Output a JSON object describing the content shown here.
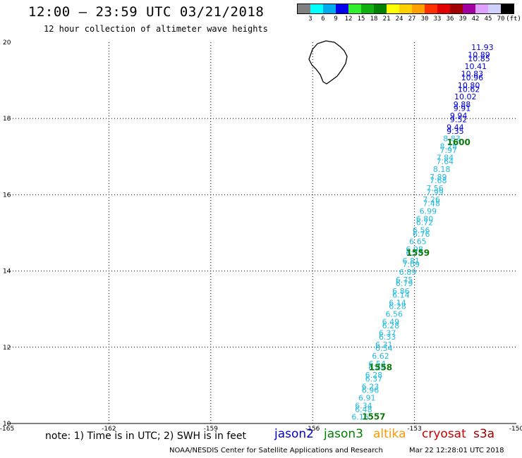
{
  "header": {
    "title": "12:00 – 23:59 UTC 03/21/2018",
    "subtitle": "12 hour collection of altimeter wave heights"
  },
  "colorbar": {
    "colors": [
      "#808080",
      "#00ffff",
      "#00aaee",
      "#0000ee",
      "#30ee30",
      "#10b010",
      "#008000",
      "#ffff00",
      "#ffd000",
      "#ffa000",
      "#ff3000",
      "#e00000",
      "#a00000",
      "#a000a0",
      "#e0a0ff",
      "#d0d0ff",
      "#000000"
    ],
    "labels": [
      "3",
      "6",
      "9",
      "12",
      "15",
      "18",
      "21",
      "24",
      "27",
      "30",
      "33",
      "36",
      "39",
      "42",
      "45",
      "70",
      "(ft)"
    ]
  },
  "map": {
    "lon_range": [
      -165,
      -150
    ],
    "lat_range": [
      10,
      20
    ],
    "x_tick_labels": [
      "-165",
      "-162",
      "-159",
      "-156",
      "-153",
      "-150"
    ],
    "y_tick_labels": [
      "10",
      "12",
      "14",
      "16",
      "18",
      "20"
    ],
    "grid": "dotted"
  },
  "chart_data": {
    "type": "scatter",
    "swh_points": [
      {
        "lon": -151.0,
        "lat": 19.8,
        "v": "11.93",
        "c": "blue"
      },
      {
        "lon": -151.1,
        "lat": 19.6,
        "v": "10.89",
        "c": "blue"
      },
      {
        "lon": -151.1,
        "lat": 19.5,
        "v": "10.85",
        "c": "blue"
      },
      {
        "lon": -151.2,
        "lat": 19.3,
        "v": "10.41",
        "c": "blue"
      },
      {
        "lon": -151.3,
        "lat": 19.1,
        "v": "10.83",
        "c": "blue"
      },
      {
        "lon": -151.3,
        "lat": 19.0,
        "v": "10.96",
        "c": "blue"
      },
      {
        "lon": -151.4,
        "lat": 18.8,
        "v": "10.80",
        "c": "blue"
      },
      {
        "lon": -151.4,
        "lat": 18.7,
        "v": "10.62",
        "c": "blue"
      },
      {
        "lon": -151.5,
        "lat": 18.5,
        "v": "10.02",
        "c": "blue"
      },
      {
        "lon": -151.6,
        "lat": 18.3,
        "v": "9.88",
        "c": "blue"
      },
      {
        "lon": -151.6,
        "lat": 18.2,
        "v": "9.91",
        "c": "blue"
      },
      {
        "lon": -151.7,
        "lat": 18.0,
        "v": "9.94",
        "c": "blue"
      },
      {
        "lon": -151.7,
        "lat": 17.9,
        "v": "9.52",
        "c": "blue"
      },
      {
        "lon": -151.8,
        "lat": 17.7,
        "v": "9.44",
        "c": "blue"
      },
      {
        "lon": -151.8,
        "lat": 17.6,
        "v": "9.35",
        "c": "blue"
      },
      {
        "lon": -151.9,
        "lat": 17.4,
        "v": "8.83",
        "c": "cyan"
      },
      {
        "lon": -152.0,
        "lat": 17.2,
        "v": "8.28",
        "c": "cyan"
      },
      {
        "lon": -152.0,
        "lat": 17.1,
        "v": "7.97",
        "c": "cyan"
      },
      {
        "lon": -152.1,
        "lat": 16.9,
        "v": "7.84",
        "c": "cyan"
      },
      {
        "lon": -152.1,
        "lat": 16.8,
        "v": "7.64",
        "c": "cyan"
      },
      {
        "lon": -152.2,
        "lat": 16.6,
        "v": "8.18",
        "c": "cyan"
      },
      {
        "lon": -152.3,
        "lat": 16.4,
        "v": "7.89",
        "c": "cyan"
      },
      {
        "lon": -152.3,
        "lat": 16.3,
        "v": "7.68",
        "c": "cyan"
      },
      {
        "lon": -152.4,
        "lat": 16.1,
        "v": "7.56",
        "c": "cyan"
      },
      {
        "lon": -152.4,
        "lat": 16.0,
        "v": "7.99",
        "c": "cyan"
      },
      {
        "lon": -152.5,
        "lat": 15.8,
        "v": "7.26",
        "c": "cyan"
      },
      {
        "lon": -152.5,
        "lat": 15.7,
        "v": "7.48",
        "c": "cyan"
      },
      {
        "lon": -152.6,
        "lat": 15.5,
        "v": "6.99",
        "c": "cyan"
      },
      {
        "lon": -152.7,
        "lat": 15.3,
        "v": "6.80",
        "c": "cyan"
      },
      {
        "lon": -152.7,
        "lat": 15.2,
        "v": "6.72",
        "c": "cyan"
      },
      {
        "lon": -152.8,
        "lat": 15.0,
        "v": "6.56",
        "c": "cyan"
      },
      {
        "lon": -152.8,
        "lat": 14.9,
        "v": "6.76",
        "c": "cyan"
      },
      {
        "lon": -152.9,
        "lat": 14.7,
        "v": "6.65",
        "c": "cyan"
      },
      {
        "lon": -153.0,
        "lat": 14.5,
        "v": "6.98",
        "c": "cyan"
      },
      {
        "lon": -153.0,
        "lat": 14.4,
        "v": "6.78",
        "c": "cyan"
      },
      {
        "lon": -153.1,
        "lat": 14.2,
        "v": "6.81",
        "c": "cyan"
      },
      {
        "lon": -153.1,
        "lat": 14.1,
        "v": "7.09",
        "c": "cyan"
      },
      {
        "lon": -153.2,
        "lat": 13.9,
        "v": "6.89",
        "c": "cyan"
      },
      {
        "lon": -153.3,
        "lat": 13.7,
        "v": "6.75",
        "c": "cyan"
      },
      {
        "lon": -153.3,
        "lat": 13.6,
        "v": "6.79",
        "c": "cyan"
      },
      {
        "lon": -153.4,
        "lat": 13.4,
        "v": "6.86",
        "c": "cyan"
      },
      {
        "lon": -153.4,
        "lat": 13.3,
        "v": "6.14",
        "c": "cyan"
      },
      {
        "lon": -153.5,
        "lat": 13.1,
        "v": "6.14",
        "c": "cyan"
      },
      {
        "lon": -153.5,
        "lat": 13.0,
        "v": "6.28",
        "c": "cyan"
      },
      {
        "lon": -153.6,
        "lat": 12.8,
        "v": "6.56",
        "c": "cyan"
      },
      {
        "lon": -153.7,
        "lat": 12.6,
        "v": "6.49",
        "c": "cyan"
      },
      {
        "lon": -153.7,
        "lat": 12.5,
        "v": "6.28",
        "c": "cyan"
      },
      {
        "lon": -153.8,
        "lat": 12.3,
        "v": "6.37",
        "c": "cyan"
      },
      {
        "lon": -153.8,
        "lat": 12.2,
        "v": "6.33",
        "c": "cyan"
      },
      {
        "lon": -153.9,
        "lat": 12.0,
        "v": "6.31",
        "c": "cyan"
      },
      {
        "lon": -153.9,
        "lat": 11.9,
        "v": "6.54",
        "c": "cyan"
      },
      {
        "lon": -154.0,
        "lat": 11.7,
        "v": "6.62",
        "c": "cyan"
      },
      {
        "lon": -154.1,
        "lat": 11.5,
        "v": "6.54",
        "c": "cyan"
      },
      {
        "lon": -154.1,
        "lat": 11.4,
        "v": "6.49",
        "c": "cyan"
      },
      {
        "lon": -154.2,
        "lat": 11.2,
        "v": "6.28",
        "c": "cyan"
      },
      {
        "lon": -154.2,
        "lat": 11.1,
        "v": "6.37",
        "c": "cyan"
      },
      {
        "lon": -154.3,
        "lat": 10.9,
        "v": "6.23",
        "c": "cyan"
      },
      {
        "lon": -154.3,
        "lat": 10.8,
        "v": "6.96",
        "c": "cyan"
      },
      {
        "lon": -154.4,
        "lat": 10.6,
        "v": "6.91",
        "c": "cyan"
      },
      {
        "lon": -154.5,
        "lat": 10.4,
        "v": "6.34",
        "c": "cyan"
      },
      {
        "lon": -154.5,
        "lat": 10.3,
        "v": "6.48",
        "c": "cyan"
      },
      {
        "lon": -154.6,
        "lat": 10.1,
        "v": "6.16",
        "c": "cyan"
      }
    ],
    "time_labels": [
      {
        "lon": -151.7,
        "lat": 17.3,
        "text": "1600"
      },
      {
        "lon": -152.9,
        "lat": 14.4,
        "text": "1559"
      },
      {
        "lon": -154.0,
        "lat": 11.4,
        "text": "1558"
      },
      {
        "lon": -154.2,
        "lat": 10.1,
        "text": "1557"
      }
    ],
    "colors": {
      "blue": "#0000dd",
      "cyan": "#22bbdd",
      "time": "#0a7a0a"
    }
  },
  "footer": {
    "note": "note: 1) Time is in UTC; 2) SWH is in feet",
    "legend": [
      {
        "label": "jason2",
        "color": "#0000cc"
      },
      {
        "label": "jason3",
        "color": "#008000"
      },
      {
        "label": "altika",
        "color": "#ff9900"
      },
      {
        "label": "cryosat",
        "color": "#cc0000"
      },
      {
        "label": "s3a",
        "color": "#a00000"
      }
    ],
    "credit": "NOAA/NESDIS Center for Satellite Applications and Research",
    "timestamp": "Mar 22 12:28:01 UTC 2018"
  }
}
